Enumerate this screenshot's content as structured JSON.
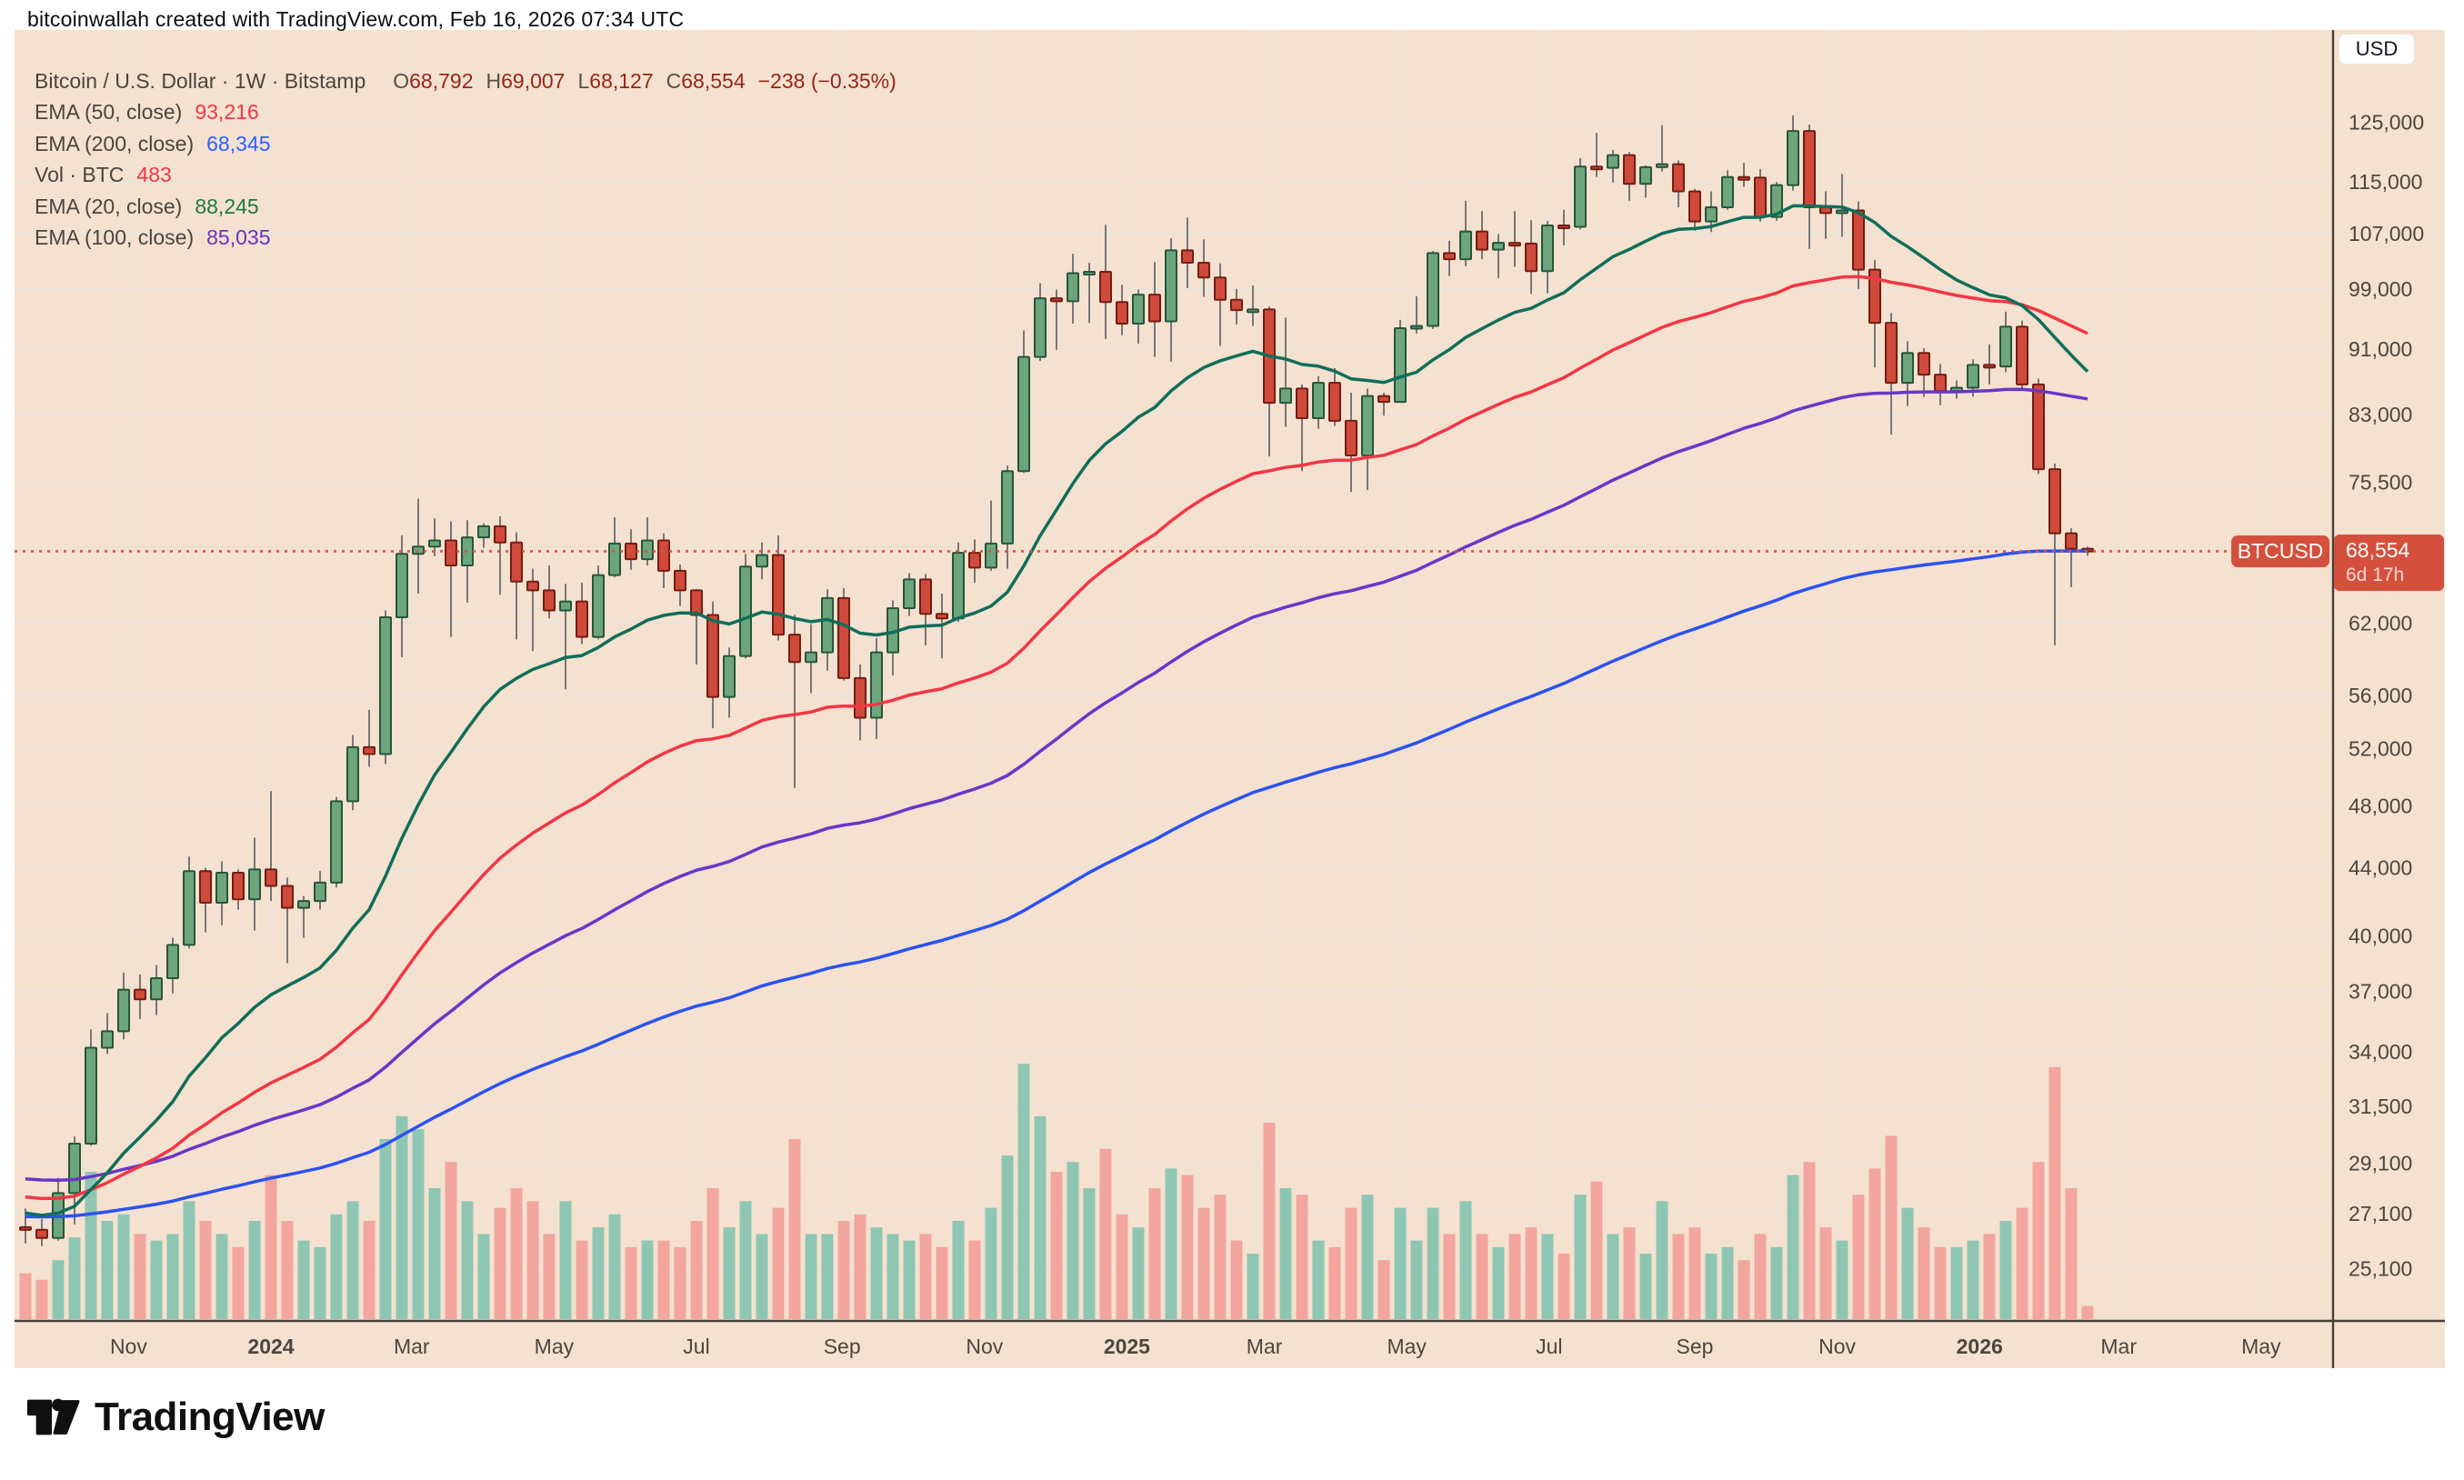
{
  "header": {
    "credit": "bitcoinwallah created with TradingView.com, Feb 16, 2026 07:34 UTC"
  },
  "legend": {
    "title": "Bitcoin / U.S. Dollar · 1W · Bitstamp",
    "ohlc": {
      "o_label": "O",
      "o": "68,792",
      "h_label": "H",
      "h": "69,007",
      "l_label": "L",
      "l": "68,127",
      "c_label": "C",
      "c": "68,554",
      "change": "−238 (−0.35%)"
    },
    "rows": [
      {
        "label": "EMA (50, close)",
        "value": "93,216",
        "color": "#f23645"
      },
      {
        "label": "EMA (200, close)",
        "value": "68,345",
        "color": "#2962ff"
      },
      {
        "label": "Vol · BTC",
        "value": "483",
        "color": "#f23645"
      },
      {
        "label": "EMA (20, close)",
        "value": "88,245",
        "color": "#1b7a45"
      },
      {
        "label": "EMA (100, close)",
        "value": "85,035",
        "color": "#6733c4"
      }
    ]
  },
  "price_axis": {
    "currency": "USD",
    "last_price_label": "68,554",
    "countdown": "6d 17h"
  },
  "price_line_tag": {
    "symbol": "BTCUSD"
  },
  "logo": {
    "brand": "TradingView"
  },
  "chart_data": {
    "type": "candlestick",
    "symbol": "BTCUSD",
    "interval": "1W",
    "exchange": "Bitstamp",
    "scale": "logarithmic",
    "unit": "USD thousands",
    "start_week": "2023-09-18",
    "end_week": "2026-02-16",
    "last_price": 68554,
    "price_ticks": [
      125000,
      115000,
      107000,
      99000,
      91000,
      83000,
      75500,
      62000,
      56000,
      52000,
      48000,
      44000,
      40000,
      37000,
      34000,
      31500,
      29100,
      27100,
      25100
    ],
    "time_ticks": [
      {
        "label": "Nov",
        "w": 6.3
      },
      {
        "label": "2024",
        "w": 15.0,
        "bold": true
      },
      {
        "label": "Mar",
        "w": 23.6
      },
      {
        "label": "May",
        "w": 32.3
      },
      {
        "label": "Jul",
        "w": 41.0
      },
      {
        "label": "Sep",
        "w": 49.9
      },
      {
        "label": "Nov",
        "w": 58.6
      },
      {
        "label": "2025",
        "w": 67.3,
        "bold": true
      },
      {
        "label": "Mar",
        "w": 75.7
      },
      {
        "label": "May",
        "w": 84.4
      },
      {
        "label": "Jul",
        "w": 93.1
      },
      {
        "label": "Sep",
        "w": 102.0
      },
      {
        "label": "Nov",
        "w": 110.7
      },
      {
        "label": "2026",
        "w": 119.4,
        "bold": true
      },
      {
        "label": "Mar",
        "w": 127.9
      },
      {
        "label": "May",
        "w": 136.6
      }
    ],
    "candles": [
      [
        26.6,
        27.3,
        26.0,
        26.5,
        0.14
      ],
      [
        26.5,
        26.9,
        25.9,
        26.2,
        0.12
      ],
      [
        26.2,
        28.5,
        26.1,
        27.9,
        0.18
      ],
      [
        27.9,
        30.2,
        26.7,
        29.9,
        0.25
      ],
      [
        29.9,
        35.1,
        29.8,
        34.2,
        0.45
      ],
      [
        34.2,
        35.9,
        33.9,
        35.0,
        0.3
      ],
      [
        35.0,
        38.0,
        34.6,
        37.1,
        0.32
      ],
      [
        37.1,
        37.9,
        35.6,
        36.6,
        0.26
      ],
      [
        36.6,
        38.4,
        35.8,
        37.7,
        0.24
      ],
      [
        37.7,
        39.9,
        36.9,
        39.5,
        0.26
      ],
      [
        39.5,
        44.7,
        39.3,
        43.8,
        0.36
      ],
      [
        43.8,
        44.0,
        40.2,
        41.9,
        0.3
      ],
      [
        41.9,
        44.4,
        40.6,
        43.7,
        0.26
      ],
      [
        43.7,
        43.9,
        41.5,
        42.1,
        0.22
      ],
      [
        42.1,
        45.9,
        40.3,
        43.9,
        0.3
      ],
      [
        43.9,
        49.0,
        42.0,
        42.9,
        0.44
      ],
      [
        42.9,
        43.4,
        38.5,
        41.6,
        0.3
      ],
      [
        41.6,
        42.3,
        39.9,
        42.0,
        0.24
      ],
      [
        42.0,
        43.8,
        41.5,
        43.1,
        0.22
      ],
      [
        43.1,
        48.6,
        42.8,
        48.3,
        0.32
      ],
      [
        48.3,
        53.0,
        47.7,
        52.1,
        0.36
      ],
      [
        52.1,
        54.9,
        50.7,
        51.6,
        0.3
      ],
      [
        51.6,
        63.1,
        50.9,
        62.5,
        0.55
      ],
      [
        62.5,
        70.1,
        59.1,
        68.3,
        0.62
      ],
      [
        68.3,
        73.8,
        64.6,
        69.0,
        0.58
      ],
      [
        69.0,
        71.8,
        68.1,
        69.6,
        0.4
      ],
      [
        69.6,
        71.5,
        60.8,
        67.2,
        0.48
      ],
      [
        67.2,
        71.6,
        63.8,
        69.9,
        0.36
      ],
      [
        69.9,
        71.3,
        68.9,
        71.0,
        0.26
      ],
      [
        71.0,
        72.0,
        64.5,
        69.4,
        0.34
      ],
      [
        69.4,
        70.4,
        60.6,
        65.7,
        0.4
      ],
      [
        65.7,
        66.9,
        59.6,
        64.9,
        0.36
      ],
      [
        64.9,
        67.2,
        62.4,
        63.1,
        0.26
      ],
      [
        63.1,
        65.5,
        56.5,
        63.9,
        0.36
      ],
      [
        63.9,
        65.6,
        60.2,
        60.8,
        0.24
      ],
      [
        60.8,
        67.2,
        60.6,
        66.3,
        0.28
      ],
      [
        66.3,
        71.9,
        66.1,
        69.3,
        0.32
      ],
      [
        69.3,
        70.7,
        66.8,
        67.8,
        0.22
      ],
      [
        67.8,
        71.9,
        67.2,
        69.6,
        0.24
      ],
      [
        69.6,
        70.3,
        65.1,
        66.7,
        0.24
      ],
      [
        66.7,
        67.3,
        63.5,
        64.9,
        0.22
      ],
      [
        64.9,
        65.0,
        58.5,
        62.7,
        0.3
      ],
      [
        62.7,
        63.9,
        53.5,
        55.9,
        0.4
      ],
      [
        55.9,
        59.9,
        54.3,
        59.2,
        0.28
      ],
      [
        59.2,
        68.3,
        59.0,
        67.1,
        0.36
      ],
      [
        67.1,
        69.4,
        65.9,
        68.2,
        0.26
      ],
      [
        68.2,
        70.1,
        60.5,
        61.0,
        0.34
      ],
      [
        61.0,
        62.7,
        49.2,
        58.7,
        0.55
      ],
      [
        58.7,
        61.9,
        56.2,
        59.5,
        0.26
      ],
      [
        59.5,
        65.0,
        58.0,
        64.2,
        0.26
      ],
      [
        64.2,
        65.1,
        57.2,
        57.4,
        0.3
      ],
      [
        57.4,
        58.5,
        52.6,
        54.3,
        0.32
      ],
      [
        54.3,
        60.7,
        52.7,
        59.5,
        0.28
      ],
      [
        59.5,
        64.0,
        57.6,
        63.3,
        0.26
      ],
      [
        63.3,
        66.5,
        62.6,
        65.9,
        0.24
      ],
      [
        65.9,
        66.4,
        60.1,
        62.8,
        0.26
      ],
      [
        62.8,
        64.6,
        59.0,
        62.4,
        0.22
      ],
      [
        62.4,
        69.4,
        62.1,
        68.4,
        0.3
      ],
      [
        68.4,
        69.7,
        65.6,
        67.0,
        0.24
      ],
      [
        67.0,
        73.6,
        66.7,
        69.3,
        0.34
      ],
      [
        69.3,
        77.3,
        66.9,
        76.7,
        0.5
      ],
      [
        76.7,
        93.4,
        76.5,
        90.0,
        0.78
      ],
      [
        90.0,
        99.8,
        89.5,
        97.7,
        0.62
      ],
      [
        97.7,
        98.9,
        90.9,
        97.3,
        0.45
      ],
      [
        97.3,
        104.0,
        94.3,
        101.2,
        0.48
      ],
      [
        101.2,
        102.7,
        94.4,
        101.4,
        0.4
      ],
      [
        101.4,
        108.3,
        92.3,
        97.2,
        0.52
      ],
      [
        97.2,
        99.6,
        92.8,
        94.3,
        0.32
      ],
      [
        94.3,
        98.9,
        91.7,
        98.2,
        0.28
      ],
      [
        98.2,
        102.8,
        90.0,
        94.6,
        0.4
      ],
      [
        94.6,
        106.3,
        89.4,
        104.5,
        0.46
      ],
      [
        104.5,
        109.4,
        99.1,
        102.7,
        0.44
      ],
      [
        102.7,
        106.1,
        97.9,
        100.6,
        0.34
      ],
      [
        100.6,
        102.6,
        91.4,
        97.5,
        0.38
      ],
      [
        97.5,
        99.0,
        94.2,
        96.1,
        0.24
      ],
      [
        96.1,
        99.5,
        94.0,
        96.2,
        0.2
      ],
      [
        96.2,
        96.6,
        78.3,
        84.4,
        0.6
      ],
      [
        84.4,
        95.1,
        81.6,
        86.1,
        0.4
      ],
      [
        86.1,
        86.6,
        76.7,
        82.6,
        0.38
      ],
      [
        82.6,
        87.6,
        81.4,
        86.8,
        0.24
      ],
      [
        86.8,
        88.6,
        81.7,
        82.3,
        0.22
      ],
      [
        82.3,
        85.6,
        74.5,
        78.4,
        0.34
      ],
      [
        78.4,
        86.1,
        74.7,
        85.2,
        0.38
      ],
      [
        85.2,
        85.6,
        82.9,
        84.5,
        0.18
      ],
      [
        84.5,
        94.8,
        84.4,
        93.7,
        0.34
      ],
      [
        93.7,
        98.0,
        93.0,
        94.0,
        0.24
      ],
      [
        94.0,
        104.4,
        93.6,
        104.1,
        0.34
      ],
      [
        104.1,
        105.9,
        100.8,
        103.2,
        0.26
      ],
      [
        103.2,
        112.0,
        102.2,
        107.3,
        0.36
      ],
      [
        107.3,
        110.4,
        103.2,
        104.6,
        0.26
      ],
      [
        104.6,
        106.9,
        100.5,
        105.6,
        0.22
      ],
      [
        105.6,
        110.4,
        102.1,
        105.5,
        0.26
      ],
      [
        105.5,
        109.0,
        98.3,
        101.5,
        0.28
      ],
      [
        101.5,
        108.9,
        98.4,
        108.2,
        0.26
      ],
      [
        108.2,
        110.6,
        105.2,
        108.0,
        0.2
      ],
      [
        108.0,
        118.9,
        107.6,
        117.5,
        0.38
      ],
      [
        117.5,
        123.2,
        115.8,
        117.3,
        0.42
      ],
      [
        117.3,
        120.3,
        114.9,
        119.4,
        0.26
      ],
      [
        119.4,
        119.9,
        112.0,
        114.7,
        0.28
      ],
      [
        114.7,
        117.7,
        112.5,
        117.4,
        0.2
      ],
      [
        117.4,
        124.5,
        116.7,
        117.9,
        0.36
      ],
      [
        117.9,
        118.5,
        111.0,
        113.5,
        0.26
      ],
      [
        113.5,
        113.9,
        107.4,
        108.8,
        0.28
      ],
      [
        108.8,
        113.5,
        107.2,
        111.0,
        0.2
      ],
      [
        111.0,
        116.9,
        110.6,
        115.8,
        0.22
      ],
      [
        115.8,
        118.1,
        114.2,
        115.7,
        0.18
      ],
      [
        115.7,
        117.1,
        108.8,
        109.5,
        0.26
      ],
      [
        109.5,
        115.0,
        108.9,
        114.5,
        0.22
      ],
      [
        114.5,
        126.2,
        113.6,
        123.5,
        0.44
      ],
      [
        123.5,
        124.6,
        104.7,
        111.0,
        0.48
      ],
      [
        111.0,
        113.5,
        106.2,
        110.1,
        0.28
      ],
      [
        110.1,
        116.3,
        106.5,
        110.5,
        0.24
      ],
      [
        110.5,
        111.9,
        99.0,
        101.7,
        0.38
      ],
      [
        101.7,
        103.1,
        88.7,
        94.4,
        0.46
      ],
      [
        94.4,
        95.7,
        80.7,
        86.8,
        0.56
      ],
      [
        86.8,
        92.0,
        84.0,
        90.5,
        0.34
      ],
      [
        90.5,
        91.1,
        85.1,
        87.8,
        0.28
      ],
      [
        87.8,
        89.1,
        84.1,
        85.8,
        0.22
      ],
      [
        85.8,
        87.1,
        84.9,
        86.2,
        0.22
      ],
      [
        86.2,
        89.7,
        85.1,
        89.0,
        0.24
      ],
      [
        89.0,
        91.6,
        86.6,
        88.8,
        0.26
      ],
      [
        88.8,
        95.9,
        88.1,
        93.9,
        0.3
      ],
      [
        93.9,
        94.7,
        86.1,
        86.6,
        0.34
      ],
      [
        86.6,
        87.3,
        76.4,
        76.9,
        0.48
      ],
      [
        76.9,
        77.5,
        60.1,
        70.3,
        0.77
      ],
      [
        70.3,
        70.8,
        65.2,
        68.8,
        0.4
      ],
      [
        68.792,
        69.007,
        68.127,
        68.554,
        0.04
      ]
    ],
    "emas": [
      {
        "period": 200,
        "color": "#2b52f0",
        "seed": 27.0,
        "legend_value": 68345
      },
      {
        "period": 100,
        "color": "#6936c8",
        "seed": 28.5,
        "legend_value": 85035
      },
      {
        "period": 50,
        "color": "#f23645",
        "seed": 27.8,
        "legend_value": 93216
      },
      {
        "period": 20,
        "color": "#0f6e59",
        "seed": 27.2,
        "legend_value": 88245
      }
    ],
    "style": {
      "bg": "#f5e1cf",
      "grid": "#e7e3de",
      "up_fill": "#6da57d",
      "up_stroke": "#27553a",
      "down_fill": "#cf4a3b",
      "down_stroke": "#731d12",
      "wick": "#777777",
      "vol_up": "#8fc6b3",
      "vol_down": "#f2a69d",
      "price_line": "#d8543f",
      "tag_bg": "#d5503c",
      "axis_text": "#4b463f",
      "axis_line": "#474038"
    }
  }
}
